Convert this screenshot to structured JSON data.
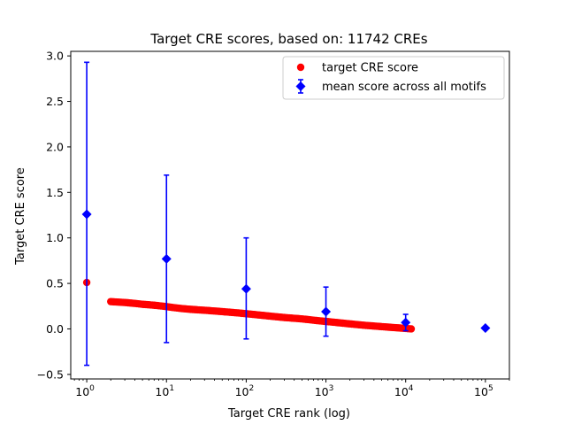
{
  "chart_data": {
    "type": "scatter",
    "title": "Target CRE scores, based on: 11742 CREs",
    "xlabel": "Target CRE rank (log)",
    "ylabel": "Target CRE score",
    "x_scale": "log",
    "xlim": [
      0.63,
      200000
    ],
    "ylim": [
      -0.55,
      3.05
    ],
    "grid": false,
    "legend_position": "top-right",
    "x_ticks": [
      {
        "base": "10",
        "exp": "0",
        "value": 1
      },
      {
        "base": "10",
        "exp": "1",
        "value": 10
      },
      {
        "base": "10",
        "exp": "2",
        "value": 100
      },
      {
        "base": "10",
        "exp": "3",
        "value": 1000
      },
      {
        "base": "10",
        "exp": "4",
        "value": 10000
      },
      {
        "base": "10",
        "exp": "5",
        "value": 100000
      }
    ],
    "y_ticks": [
      {
        "label": "−0.5",
        "value": -0.5
      },
      {
        "label": "0.0",
        "value": 0.0
      },
      {
        "label": "0.5",
        "value": 0.5
      },
      {
        "label": "1.0",
        "value": 1.0
      },
      {
        "label": "1.5",
        "value": 1.5
      },
      {
        "label": "2.0",
        "value": 2.0
      },
      {
        "label": "2.5",
        "value": 2.5
      },
      {
        "label": "3.0",
        "value": 3.0
      }
    ],
    "series": [
      {
        "name": "target CRE score",
        "color": "#ff0000",
        "marker": "circle",
        "points": [
          [
            1,
            0.51
          ],
          [
            2,
            0.3
          ],
          [
            3,
            0.29
          ],
          [
            4,
            0.28
          ],
          [
            5,
            0.27
          ],
          [
            6,
            0.265
          ],
          [
            7,
            0.26
          ],
          [
            8,
            0.255
          ],
          [
            9,
            0.25
          ],
          [
            10,
            0.245
          ],
          [
            12,
            0.235
          ],
          [
            15,
            0.225
          ],
          [
            20,
            0.215
          ],
          [
            30,
            0.205
          ],
          [
            50,
            0.19
          ],
          [
            80,
            0.175
          ],
          [
            120,
            0.16
          ],
          [
            200,
            0.14
          ],
          [
            300,
            0.125
          ],
          [
            500,
            0.11
          ],
          [
            800,
            0.09
          ],
          [
            1200,
            0.075
          ],
          [
            2000,
            0.055
          ],
          [
            3000,
            0.04
          ],
          [
            5000,
            0.025
          ],
          [
            7000,
            0.015
          ],
          [
            9000,
            0.008
          ],
          [
            11742,
            0.0
          ]
        ]
      },
      {
        "name": "mean score across all motifs",
        "color": "#0000ff",
        "marker": "diamond",
        "points": [
          {
            "x": 1,
            "y": 1.26,
            "lo": -0.4,
            "hi": 2.93
          },
          {
            "x": 10,
            "y": 0.77,
            "lo": -0.15,
            "hi": 1.69
          },
          {
            "x": 100,
            "y": 0.44,
            "lo": -0.11,
            "hi": 1.0
          },
          {
            "x": 1000,
            "y": 0.19,
            "lo": -0.08,
            "hi": 0.46
          },
          {
            "x": 10000,
            "y": 0.07,
            "lo": -0.02,
            "hi": 0.16
          },
          {
            "x": 100000,
            "y": 0.01,
            "lo": 0.01,
            "hi": 0.01
          }
        ]
      }
    ]
  }
}
